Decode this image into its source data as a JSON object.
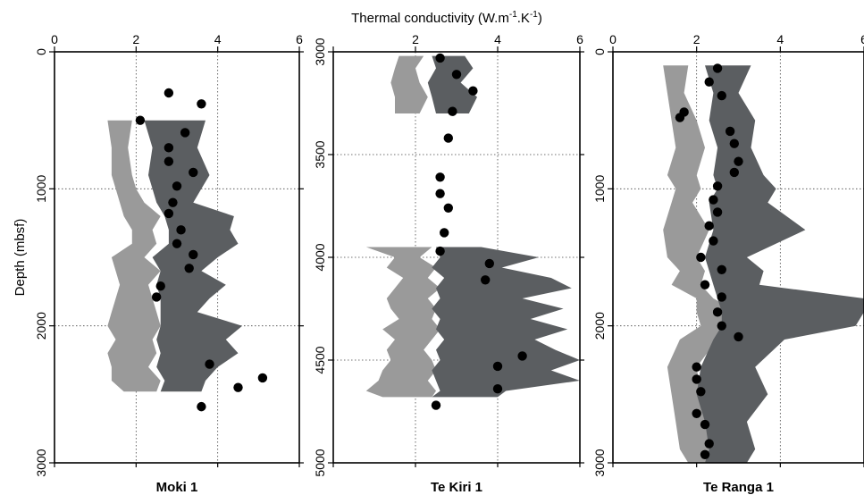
{
  "figure": {
    "x_title": "Thermal conductivity (W.m",
    "x_title_sup1": "-1",
    "x_title_mid": ".K",
    "x_title_sup2": "-1",
    "x_title_end": ")",
    "y_title": "Depth (mbsf)"
  },
  "colors": {
    "band_light": "#9a9a9a",
    "band_dark": "#5b5e61",
    "points": "#000000"
  },
  "chart_data": [
    {
      "type": "area",
      "title": "Moki 1",
      "xlabel": "Thermal conductivity (W.m-1.K-1)",
      "ylabel": "Depth (mbsf)",
      "xlim": [
        0,
        6
      ],
      "ylim": [
        3000,
        0
      ],
      "x_ticks": [
        "0",
        "2",
        "4",
        "6"
      ],
      "y_ticks": [
        "0",
        "1000",
        "2000",
        "3000"
      ],
      "grid": true,
      "light_band": {
        "depth": [
          500,
          700,
          900,
          1000,
          1100,
          1200,
          1300,
          1400,
          1500,
          1600,
          1700,
          1800,
          1900,
          2000,
          2100,
          2200,
          2300,
          2400,
          2480
        ],
        "left": [
          1.3,
          1.4,
          1.4,
          1.5,
          1.6,
          1.7,
          1.9,
          1.9,
          1.4,
          1.5,
          1.6,
          1.5,
          1.4,
          1.3,
          1.5,
          1.3,
          1.4,
          1.4,
          1.7
        ],
        "right": [
          1.9,
          1.8,
          1.9,
          2.0,
          2.2,
          2.6,
          2.4,
          2.5,
          2.2,
          2.6,
          2.3,
          2.4,
          2.5,
          2.6,
          2.4,
          2.5,
          2.3,
          2.6,
          2.5
        ]
      },
      "dark_band": {
        "depth": [
          500,
          700,
          900,
          1000,
          1100,
          1200,
          1300,
          1400,
          1500,
          1600,
          1700,
          1800,
          1900,
          2000,
          2100,
          2200,
          2300,
          2400,
          2480
        ],
        "left": [
          2.2,
          2.4,
          2.3,
          2.4,
          2.5,
          2.7,
          2.8,
          2.8,
          2.4,
          2.6,
          2.5,
          2.6,
          2.6,
          2.6,
          2.5,
          2.6,
          2.5,
          2.7,
          2.6
        ],
        "right": [
          3.7,
          3.5,
          3.8,
          3.6,
          3.4,
          4.4,
          4.3,
          4.5,
          4.0,
          3.6,
          4.2,
          3.8,
          3.5,
          4.6,
          4.2,
          4.5,
          4.0,
          3.7,
          3.6
        ]
      },
      "points": [
        {
          "x": 2.8,
          "y": 300
        },
        {
          "x": 3.6,
          "y": 380
        },
        {
          "x": 2.1,
          "y": 500
        },
        {
          "x": 3.2,
          "y": 590
        },
        {
          "x": 2.8,
          "y": 700
        },
        {
          "x": 2.8,
          "y": 800
        },
        {
          "x": 3.4,
          "y": 880
        },
        {
          "x": 3.0,
          "y": 980
        },
        {
          "x": 2.9,
          "y": 1100
        },
        {
          "x": 2.8,
          "y": 1180
        },
        {
          "x": 3.1,
          "y": 1300
        },
        {
          "x": 3.0,
          "y": 1400
        },
        {
          "x": 3.4,
          "y": 1480
        },
        {
          "x": 3.3,
          "y": 1580
        },
        {
          "x": 2.6,
          "y": 1710
        },
        {
          "x": 2.5,
          "y": 1790
        },
        {
          "x": 3.8,
          "y": 2280
        },
        {
          "x": 5.1,
          "y": 2380
        },
        {
          "x": 4.5,
          "y": 2450
        },
        {
          "x": 3.6,
          "y": 2590
        }
      ]
    },
    {
      "type": "area",
      "title": "Te Kiri 1",
      "xlabel": "Thermal conductivity (W.m-1.K-1)",
      "ylabel": "",
      "xlim": [
        0,
        6
      ],
      "ylim": [
        5000,
        3000
      ],
      "x_ticks": [
        "",
        "2",
        "4",
        "6"
      ],
      "y_ticks": [
        "3000",
        "3500",
        "4000",
        "4500",
        "5000"
      ],
      "grid": true,
      "light_band": {
        "segments": [
          {
            "depth": [
              3020,
              3080,
              3150,
              3220,
              3300
            ],
            "left": [
              1.6,
              1.5,
              1.4,
              1.5,
              1.5
            ],
            "right": [
              2.2,
              2.0,
              2.1,
              2.3,
              2.1
            ]
          },
          {
            "depth": [
              3950,
              4000,
              4050,
              4100,
              4150,
              4200,
              4250,
              4300,
              4350,
              4400,
              4450,
              4500,
              4550,
              4600,
              4650,
              4680
            ],
            "left": [
              0.8,
              1.5,
              1.3,
              1.7,
              1.5,
              1.3,
              1.4,
              1.6,
              1.2,
              1.5,
              1.3,
              1.4,
              1.2,
              1.1,
              0.8,
              1.2
            ],
            "right": [
              2.4,
              2.1,
              2.5,
              2.3,
              2.6,
              2.3,
              2.5,
              2.4,
              2.6,
              2.4,
              2.2,
              2.4,
              2.5,
              2.3,
              2.5,
              2.4
            ]
          }
        ]
      },
      "dark_band": {
        "segments": [
          {
            "depth": [
              3020,
              3080,
              3150,
              3220,
              3300
            ],
            "left": [
              2.4,
              2.5,
              2.3,
              2.4,
              2.5
            ],
            "right": [
              3.2,
              3.4,
              3.1,
              3.5,
              3.3
            ]
          },
          {
            "depth": [
              3950,
              4000,
              4050,
              4100,
              4150,
              4200,
              4250,
              4300,
              4350,
              4400,
              4450,
              4500,
              4550,
              4600,
              4650,
              4680
            ],
            "left": [
              2.5,
              2.6,
              2.4,
              2.7,
              2.5,
              2.6,
              2.4,
              2.6,
              2.5,
              2.7,
              2.5,
              2.6,
              2.4,
              2.5,
              2.6,
              2.4
            ],
            "right": [
              3.6,
              5.0,
              4.1,
              5.3,
              5.8,
              4.6,
              5.6,
              4.8,
              5.7,
              4.9,
              5.4,
              6.0,
              5.3,
              6.0,
              4.2,
              4.0
            ]
          }
        ]
      },
      "points": [
        {
          "x": 2.6,
          "y": 3030
        },
        {
          "x": 3.0,
          "y": 3110
        },
        {
          "x": 3.4,
          "y": 3190
        },
        {
          "x": 2.9,
          "y": 3290
        },
        {
          "x": 2.8,
          "y": 3420
        },
        {
          "x": 2.6,
          "y": 3610
        },
        {
          "x": 2.6,
          "y": 3690
        },
        {
          "x": 2.8,
          "y": 3760
        },
        {
          "x": 2.7,
          "y": 3880
        },
        {
          "x": 2.6,
          "y": 3970
        },
        {
          "x": 3.8,
          "y": 4030
        },
        {
          "x": 3.7,
          "y": 4110
        },
        {
          "x": 4.6,
          "y": 4480
        },
        {
          "x": 4.0,
          "y": 4530
        },
        {
          "x": 4.0,
          "y": 4640
        },
        {
          "x": 2.5,
          "y": 4720
        }
      ]
    },
    {
      "type": "area",
      "title": "Te Ranga 1",
      "xlabel": "Thermal conductivity (W.m-1.K-1)",
      "ylabel": "",
      "xlim": [
        0,
        6
      ],
      "ylim": [
        3000,
        0
      ],
      "x_ticks": [
        "0",
        "2",
        "4",
        "6"
      ],
      "y_ticks": [
        "0",
        "1000",
        "2000",
        "3000"
      ],
      "grid": true,
      "light_band": {
        "depth": [
          100,
          300,
          500,
          700,
          900,
          1000,
          1100,
          1300,
          1500,
          1600,
          1700,
          1800,
          1900,
          2000,
          2100,
          2300,
          2500,
          2700,
          2900,
          3000
        ],
        "left": [
          1.2,
          1.3,
          1.4,
          1.5,
          1.3,
          1.5,
          1.4,
          1.2,
          1.3,
          1.6,
          1.4,
          2.0,
          2.0,
          2.1,
          1.6,
          1.3,
          1.4,
          1.5,
          1.6,
          1.8
        ],
        "right": [
          1.8,
          1.7,
          2.0,
          2.2,
          2.0,
          2.1,
          1.9,
          2.3,
          2.0,
          2.2,
          2.1,
          2.4,
          3.0,
          2.9,
          2.5,
          2.0,
          2.1,
          2.3,
          2.4,
          2.2
        ]
      },
      "dark_band": {
        "depth": [
          100,
          300,
          500,
          700,
          900,
          1000,
          1100,
          1300,
          1500,
          1600,
          1700,
          1800,
          1900,
          2000,
          2100,
          2300,
          2500,
          2700,
          2900,
          3000
        ],
        "left": [
          2.2,
          2.4,
          2.3,
          2.5,
          2.4,
          2.5,
          2.3,
          2.4,
          2.2,
          2.3,
          2.4,
          2.5,
          2.6,
          2.6,
          2.4,
          2.1,
          2.0,
          2.2,
          2.3,
          2.2
        ],
        "right": [
          3.3,
          3.0,
          3.4,
          3.3,
          3.6,
          3.9,
          3.7,
          4.6,
          3.2,
          3.6,
          3.5,
          6.0,
          6.0,
          5.8,
          4.1,
          3.4,
          3.7,
          3.2,
          3.4,
          3.2
        ]
      },
      "points": [
        {
          "x": 2.5,
          "y": 120
        },
        {
          "x": 2.3,
          "y": 220
        },
        {
          "x": 2.6,
          "y": 320
        },
        {
          "x": 1.7,
          "y": 440
        },
        {
          "x": 1.6,
          "y": 480
        },
        {
          "x": 2.8,
          "y": 580
        },
        {
          "x": 2.9,
          "y": 670
        },
        {
          "x": 3.0,
          "y": 800
        },
        {
          "x": 2.9,
          "y": 880
        },
        {
          "x": 2.5,
          "y": 980
        },
        {
          "x": 2.4,
          "y": 1080
        },
        {
          "x": 2.5,
          "y": 1170
        },
        {
          "x": 2.3,
          "y": 1270
        },
        {
          "x": 2.4,
          "y": 1380
        },
        {
          "x": 2.1,
          "y": 1500
        },
        {
          "x": 2.6,
          "y": 1590
        },
        {
          "x": 2.2,
          "y": 1700
        },
        {
          "x": 2.6,
          "y": 1790
        },
        {
          "x": 2.5,
          "y": 1900
        },
        {
          "x": 2.6,
          "y": 2000
        },
        {
          "x": 3.0,
          "y": 2080
        },
        {
          "x": 2.0,
          "y": 2300
        },
        {
          "x": 2.0,
          "y": 2390
        },
        {
          "x": 2.1,
          "y": 2480
        },
        {
          "x": 2.0,
          "y": 2640
        },
        {
          "x": 2.2,
          "y": 2720
        },
        {
          "x": 2.3,
          "y": 2860
        },
        {
          "x": 2.2,
          "y": 2940
        }
      ]
    }
  ]
}
